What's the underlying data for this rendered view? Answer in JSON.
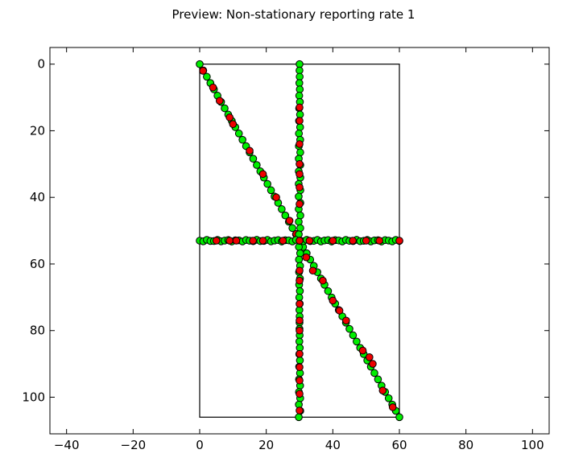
{
  "chart_data": {
    "type": "scatter",
    "title": "Preview: Non-stationary reporting rate 1",
    "xlabel": "",
    "ylabel": "",
    "xlim": [
      -45,
      105
    ],
    "ylim": [
      111,
      -5
    ],
    "y_inverted": true,
    "grid": false,
    "x_ticks": [
      -40,
      -20,
      0,
      20,
      40,
      60,
      80,
      100
    ],
    "y_ticks": [
      0,
      20,
      40,
      60,
      80,
      100
    ],
    "colors": {
      "green": "#00ee00",
      "red": "#ee0000",
      "outline": "#000000"
    },
    "rectangle": {
      "x": [
        0,
        60
      ],
      "y": [
        0,
        106
      ]
    },
    "series": [
      {
        "path": "diagonal",
        "start": [
          0,
          0
        ],
        "end": [
          60,
          106
        ],
        "red_points": [
          [
            1,
            2
          ],
          [
            4,
            7
          ],
          [
            6,
            11
          ],
          [
            9,
            16
          ],
          [
            10,
            18
          ],
          [
            15,
            26
          ],
          [
            19,
            33
          ],
          [
            23,
            40
          ],
          [
            27,
            47
          ],
          [
            29,
            51
          ],
          [
            32,
            58
          ],
          [
            34,
            62
          ],
          [
            37,
            65
          ],
          [
            40,
            71
          ],
          [
            42,
            74
          ],
          [
            44,
            77
          ],
          [
            49,
            86
          ],
          [
            51,
            88
          ],
          [
            52,
            90
          ],
          [
            55,
            98
          ],
          [
            58,
            103
          ]
        ]
      },
      {
        "path": "vertical",
        "start": [
          30,
          0
        ],
        "end": [
          30,
          106
        ],
        "red_points": [
          [
            30,
            13
          ],
          [
            30,
            17
          ],
          [
            30,
            24
          ],
          [
            30,
            30
          ],
          [
            30,
            33
          ],
          [
            30,
            37
          ],
          [
            30,
            42
          ],
          [
            30,
            53
          ],
          [
            30,
            62
          ],
          [
            30,
            65
          ],
          [
            30,
            72
          ],
          [
            30,
            77
          ],
          [
            30,
            80
          ],
          [
            30,
            87
          ],
          [
            30,
            91
          ],
          [
            30,
            95
          ],
          [
            30,
            99
          ],
          [
            30,
            104
          ]
        ]
      },
      {
        "path": "horizontal",
        "start": [
          0,
          53
        ],
        "end": [
          60,
          53
        ],
        "red_points": [
          [
            5,
            53
          ],
          [
            9,
            53
          ],
          [
            11,
            53
          ],
          [
            16,
            53
          ],
          [
            19,
            53
          ],
          [
            25,
            53
          ],
          [
            30,
            53
          ],
          [
            33,
            53
          ],
          [
            40,
            53
          ],
          [
            46,
            53
          ],
          [
            50,
            53
          ],
          [
            54,
            53
          ],
          [
            60,
            53
          ]
        ]
      }
    ]
  }
}
